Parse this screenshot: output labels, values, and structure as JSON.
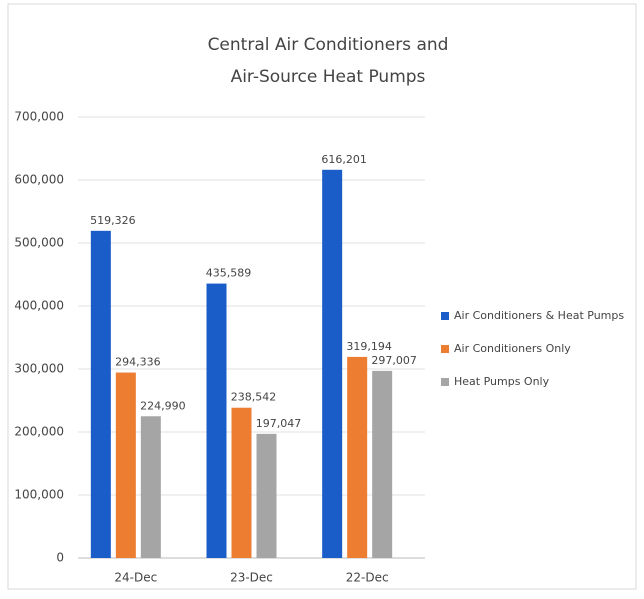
{
  "chart_data": {
    "type": "bar",
    "title": [
      "Central Air Conditioners and",
      "Air-Source Heat Pumps"
    ],
    "categories": [
      "24-Dec",
      "23-Dec",
      "22-Dec"
    ],
    "series": [
      {
        "name": "Air Conditioners & Heat Pumps",
        "color": "#1a5cc8",
        "values": [
          519326,
          435589,
          616201
        ],
        "value_labels": [
          "519,326",
          "435,589",
          "616,201"
        ]
      },
      {
        "name": "Air Conditioners Only",
        "color": "#ed7d31",
        "values": [
          294336,
          238542,
          319194
        ],
        "value_labels": [
          "294,336",
          "238,542",
          "319,194"
        ]
      },
      {
        "name": "Heat Pumps Only",
        "color": "#a5a5a5",
        "values": [
          224990,
          197047,
          297007
        ],
        "value_labels": [
          "224,990",
          "197,047",
          "297,007"
        ]
      }
    ],
    "ylim": [
      0,
      700000
    ],
    "yticks": [
      0,
      {
        "value": 100000,
        "label": "100,000"
      },
      {
        "value": 200000,
        "label": "200,000"
      },
      {
        "value": 300000,
        "label": "300,000"
      },
      {
        "value": 400000,
        "label": "400,000"
      },
      {
        "value": 500000,
        "label": "500,000"
      },
      {
        "value": 600000,
        "label": "600,000"
      },
      {
        "value": 700000,
        "label": "700,000"
      }
    ],
    "grid": true,
    "legend": "right"
  }
}
